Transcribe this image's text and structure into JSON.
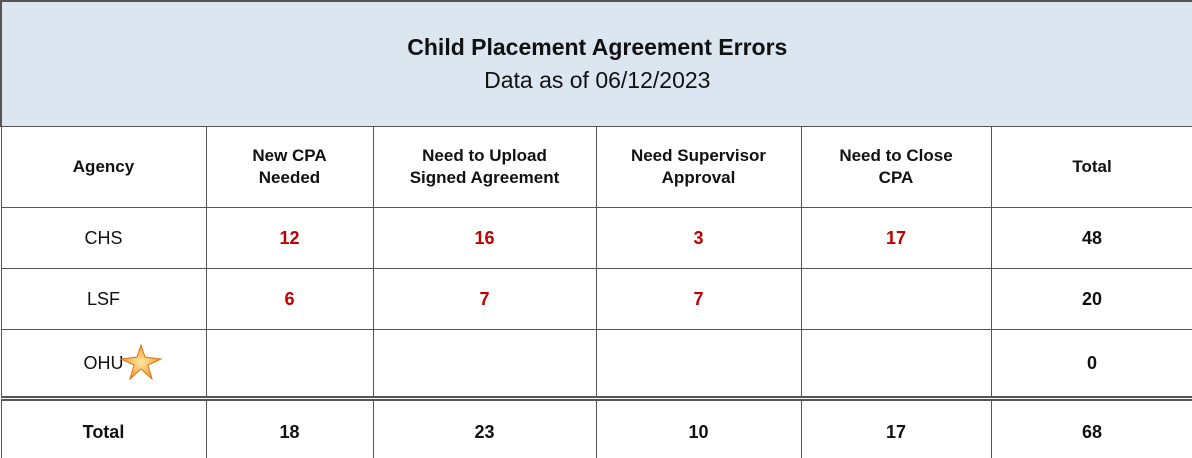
{
  "header": {
    "title": "Child Placement Agreement Errors",
    "subtitle": "Data as of 06/12/2023"
  },
  "table": {
    "columns": [
      "Agency",
      "New CPA Needed",
      "Need to Upload Signed Agreement",
      "Need Supervisor Approval",
      "Need to Close CPA",
      "Total"
    ],
    "rows": [
      [
        "CHS",
        12,
        16,
        3,
        17,
        48
      ],
      [
        "LSF",
        6,
        7,
        7,
        null,
        20
      ],
      [
        "OHU",
        null,
        null,
        null,
        null,
        0
      ]
    ],
    "total_row": [
      "Total",
      18,
      23,
      10,
      17,
      68
    ]
  }
}
